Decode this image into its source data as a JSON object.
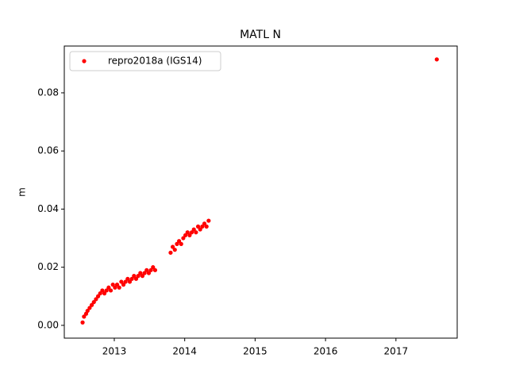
{
  "chart_data": {
    "type": "scatter",
    "title": "MATL N",
    "y_label": "m",
    "legend": "upper left",
    "grid": false,
    "xlim": [
      2012.29,
      2017.87
    ],
    "ylim": [
      -0.0044,
      0.0961
    ],
    "xticks": [
      2013,
      2014,
      2015,
      2016,
      2017
    ],
    "yticks": [
      {
        "value": 0,
        "label": "0.00"
      },
      {
        "value": 0.02,
        "label": "0.02"
      },
      {
        "value": 0.04,
        "label": "0.04"
      },
      {
        "value": 0.06,
        "label": "0.06"
      },
      {
        "value": 0.08,
        "label": "0.08"
      }
    ],
    "series": [
      {
        "name": "repro2018a (IGS14)",
        "color": "#ff0000",
        "x": [
          2012.55,
          2012.57,
          2012.6,
          2012.62,
          2012.65,
          2012.68,
          2012.71,
          2012.74,
          2012.77,
          2012.8,
          2012.83,
          2012.86,
          2012.89,
          2012.92,
          2012.95,
          2012.98,
          2013.01,
          2013.04,
          2013.07,
          2013.1,
          2013.13,
          2013.16,
          2013.19,
          2013.22,
          2013.25,
          2013.28,
          2013.31,
          2013.34,
          2013.37,
          2013.4,
          2013.43,
          2013.46,
          2013.49,
          2013.52,
          2013.55,
          2013.58,
          2013.8,
          2013.83,
          2013.86,
          2013.89,
          2013.92,
          2013.95,
          2013.98,
          2014.01,
          2014.04,
          2014.07,
          2014.1,
          2014.13,
          2014.16,
          2014.19,
          2014.22,
          2014.25,
          2014.28,
          2014.31,
          2014.34,
          2017.58
        ],
        "values": [
          0.001,
          0.003,
          0.004,
          0.005,
          0.006,
          0.007,
          0.008,
          0.009,
          0.01,
          0.011,
          0.012,
          0.011,
          0.012,
          0.013,
          0.012,
          0.014,
          0.013,
          0.014,
          0.013,
          0.015,
          0.014,
          0.015,
          0.016,
          0.015,
          0.016,
          0.017,
          0.016,
          0.017,
          0.018,
          0.017,
          0.018,
          0.019,
          0.018,
          0.019,
          0.02,
          0.019,
          0.025,
          0.027,
          0.026,
          0.028,
          0.029,
          0.028,
          0.03,
          0.031,
          0.032,
          0.031,
          0.032,
          0.033,
          0.032,
          0.034,
          0.033,
          0.034,
          0.035,
          0.034,
          0.036,
          0.0915
        ]
      }
    ]
  }
}
